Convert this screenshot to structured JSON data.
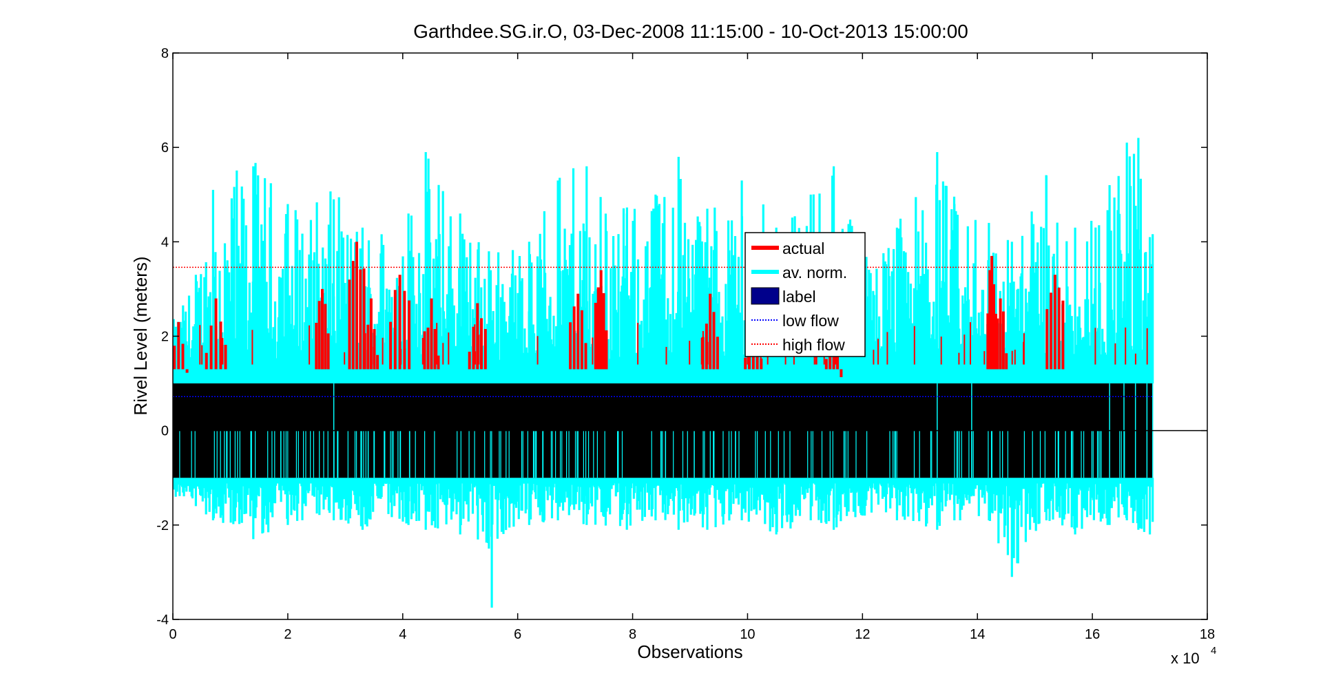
{
  "chart_data": {
    "type": "line",
    "title": "Garthdee.SG.ir.O, 03-Dec-2008 11:15:00 - 10-Oct-2013 15:00:00",
    "xlabel": "Observations",
    "ylabel": "Rivel Level (meters)",
    "x_exponent_label": "x 10",
    "x_exponent_power": "4",
    "xlim": [
      0,
      18
    ],
    "ylim": [
      -4,
      8
    ],
    "x_ticks": [
      "0",
      "2",
      "4",
      "6",
      "8",
      "10",
      "12",
      "14",
      "16",
      "18"
    ],
    "y_ticks": [
      "-4",
      "-2",
      "0",
      "2",
      "4",
      "6",
      "8"
    ],
    "x_tick_values": [
      0,
      2,
      4,
      6,
      8,
      10,
      12,
      14,
      16,
      18
    ],
    "y_tick_values": [
      -4,
      -2,
      0,
      2,
      4,
      6,
      8
    ],
    "data_x_range": [
      0,
      17.05
    ],
    "label_band": [
      -1,
      1
    ],
    "low_flow_level": 0.72,
    "high_flow_level": 3.46,
    "av_norm_envelope": {
      "x": [
        0.05,
        0.4,
        0.7,
        1.4,
        2.0,
        2.8,
        3.3,
        4.1,
        4.4,
        5.0,
        5.5,
        6.2,
        6.7,
        7.2,
        7.9,
        8.4,
        8.8,
        9.3,
        9.9,
        10.5,
        11.1,
        11.5,
        12.0,
        12.6,
        13.3,
        13.6,
        14.2,
        14.6,
        15.2,
        15.7,
        16.3,
        16.6,
        16.8,
        17.0
      ],
      "upper": [
        2.2,
        3.3,
        5.1,
        5.6,
        4.8,
        4.9,
        4.3,
        4.6,
        5.9,
        4.6,
        3.8,
        4.0,
        5.3,
        5.6,
        4.6,
        5.0,
        5.8,
        4.7,
        5.3,
        4.3,
        5.0,
        5.6,
        3.6,
        4.3,
        5.9,
        4.8,
        4.4,
        4.0,
        5.4,
        4.3,
        5.2,
        6.1,
        6.2,
        4.1
      ],
      "lower": [
        -1.4,
        -1.6,
        -1.9,
        -2.3,
        -2.0,
        -1.9,
        -2.1,
        -2.0,
        -2.1,
        -2.2,
        -2.5,
        -2.0,
        -1.9,
        -2.0,
        -2.1,
        -1.9,
        -2.1,
        -2.1,
        -1.9,
        -2.2,
        -1.9,
        -2.1,
        -1.8,
        -1.9,
        -2.1,
        -1.9,
        -1.9,
        -3.1,
        -1.9,
        -2.2,
        -2.0,
        -1.9,
        -2.1,
        -2.2
      ],
      "deepest_dip": {
        "x": 5.55,
        "value": -3.75
      }
    },
    "actual_peaks": {
      "x": [
        0.1,
        0.75,
        2.6,
        3.2,
        3.45,
        3.95,
        4.5,
        5.3,
        7.05,
        7.45,
        9.35,
        10.1,
        11.5,
        14.25,
        14.4,
        15.35
      ],
      "values": [
        2.3,
        2.8,
        3.0,
        4.0,
        2.8,
        3.3,
        2.8,
        2.7,
        2.9,
        3.4,
        2.9,
        2.3,
        2.4,
        3.7,
        2.8,
        3.3
      ]
    },
    "cyan_gap_lines_x": [
      2.8,
      13.3,
      13.9,
      16.3,
      16.55,
      16.75,
      16.95,
      17.05
    ],
    "series": [
      {
        "name": "actual",
        "color": "#ff0000",
        "style": "solid-thick"
      },
      {
        "name": "av. norm.",
        "color": "#00ffff",
        "style": "solid-thick"
      },
      {
        "name": "label",
        "color": "#00008b",
        "style": "filled-box"
      },
      {
        "name": "low flow",
        "color": "#0000ff",
        "style": "dotted"
      },
      {
        "name": "high flow",
        "color": "#ff0000",
        "style": "dotted"
      }
    ],
    "legend_position": "center",
    "grid": false,
    "colors": {
      "actual": "#ff0000",
      "av_norm": "#00ffff",
      "label_fill": "#000000",
      "label_legend": "#00008b",
      "low_flow": "#0000ff",
      "high_flow": "#ff0000",
      "axes": "#000000",
      "background": "#ffffff"
    }
  }
}
